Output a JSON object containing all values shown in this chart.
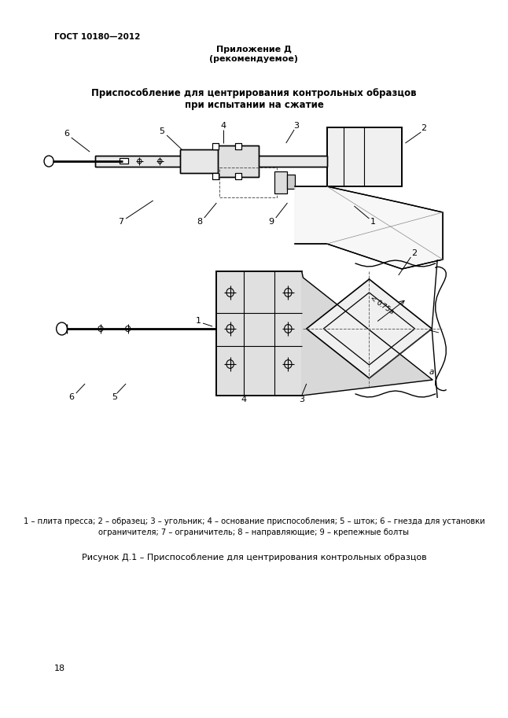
{
  "page_title_left": "ГОСТ 10180—2012",
  "appendix_title": "Приложение Д\n(рекомендуемое)",
  "figure_title": "Приспособление для центрирования контрольных образцов\nпри испытании на сжатие",
  "caption_text": "1 – плита пресса; 2 – образец; 3 – угольник; 4 – основание приспособления; 5 – шток; 6 – гнезда для установки\nограничителя; 7 – ограничитель; 8 – направляющие; 9 – крепежные болты",
  "figure_label": "Рисунок Д.1 – Приспособление для центрирования контрольных образцов",
  "page_number": "18",
  "bg_color": "#ffffff",
  "line_color": "#000000"
}
